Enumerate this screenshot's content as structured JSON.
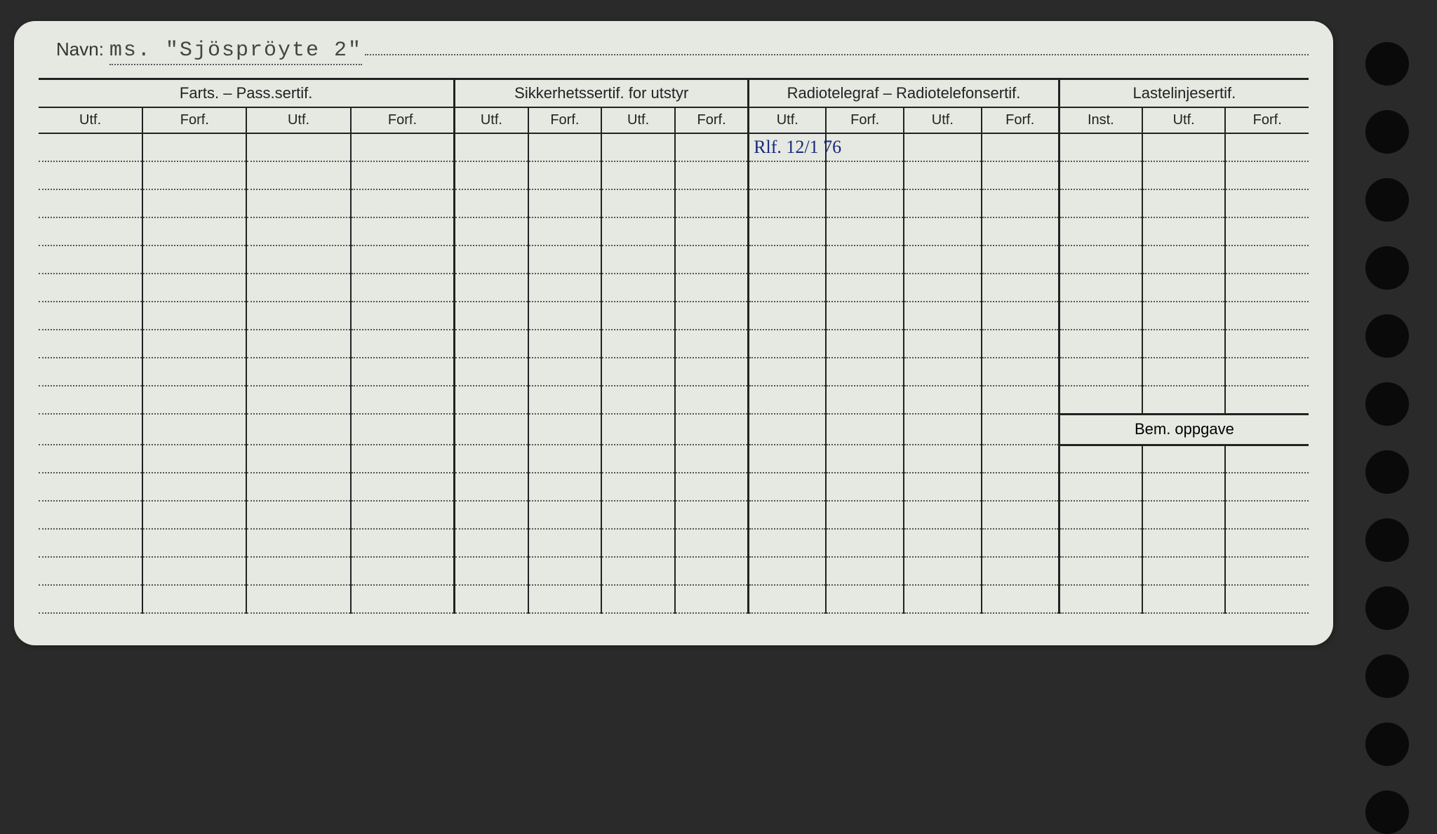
{
  "navn": {
    "label": "Navn:",
    "value": "ms. \"Sjöspröyte 2\""
  },
  "sections": {
    "farts": {
      "title": "Farts. – Pass.sertif.",
      "cols": [
        "Utf.",
        "Forf.",
        "Utf.",
        "Forf."
      ]
    },
    "sikkerhet": {
      "title": "Sikkerhetssertif. for utstyr",
      "cols": [
        "Utf.",
        "Forf.",
        "Utf.",
        "Forf."
      ]
    },
    "radio": {
      "title": "Radiotelegraf – Radiotelefonsertif.",
      "cols": [
        "Utf.",
        "Forf.",
        "Utf.",
        "Forf."
      ]
    },
    "laste": {
      "title": "Lastelinjesertif.",
      "cols": [
        "Inst.",
        "Utf.",
        "Forf."
      ]
    }
  },
  "handwritten_entry": "Rlf. 12/1 76",
  "bem_label": "Bem. oppgave",
  "num_rows_before_bem": 10,
  "num_rows_after_bem": 6,
  "colors": {
    "card_bg": "#e6e8e2",
    "page_bg": "#2a2a2a",
    "line": "#222222",
    "dot": "#555555",
    "ink": "#1a2a7a"
  },
  "holes_count": 12
}
